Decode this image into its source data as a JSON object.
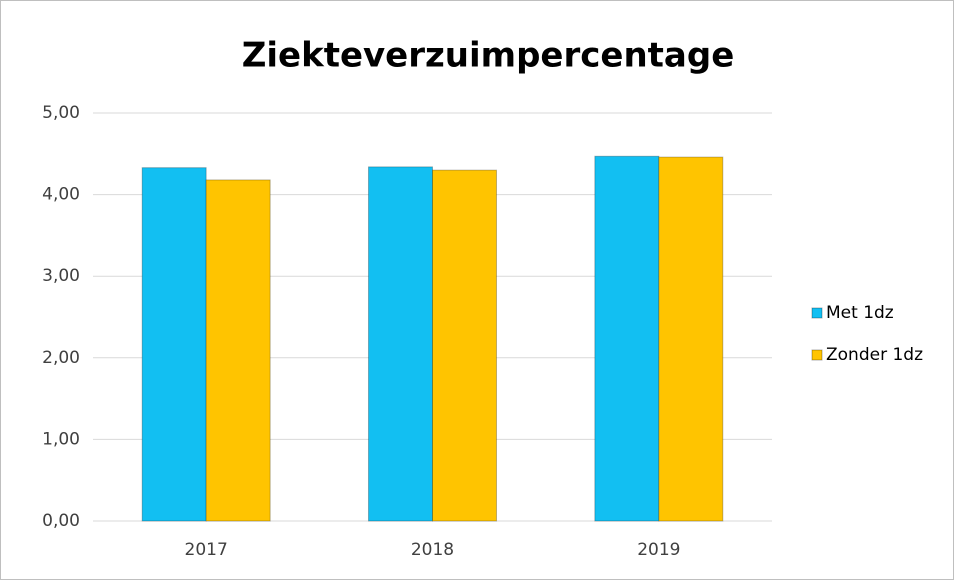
{
  "chart_data": {
    "type": "bar",
    "title": "Ziekteverzuimpercentage",
    "categories": [
      "2017",
      "2018",
      "2019"
    ],
    "series": [
      {
        "name": "Met 1dz",
        "color": "#12bff2",
        "values": [
          4.33,
          4.34,
          4.47
        ]
      },
      {
        "name": "Zonder 1dz",
        "color": "#ffc400",
        "values": [
          4.18,
          4.3,
          4.46
        ]
      }
    ],
    "ylim": [
      0,
      5
    ],
    "yticks": [
      {
        "value": 0,
        "label": "0,00"
      },
      {
        "value": 1,
        "label": "1,00"
      },
      {
        "value": 2,
        "label": "2,00"
      },
      {
        "value": 3,
        "label": "3,00"
      },
      {
        "value": 4,
        "label": "4,00"
      },
      {
        "value": 5,
        "label": "5,00"
      }
    ],
    "grid": true,
    "legend": "right"
  }
}
